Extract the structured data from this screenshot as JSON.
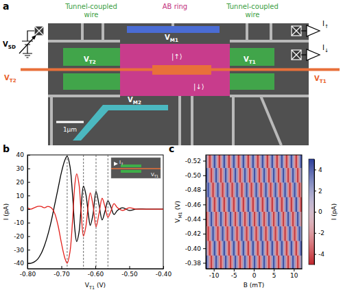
{
  "diagram": {
    "panel_label": "a",
    "titles": [
      "Tunnel-coupled wire",
      "AB ring",
      "Tunnel-coupled wire"
    ],
    "voltages": [
      {
        "main": "V",
        "sub": "SD"
      },
      {
        "main": "V",
        "sub": "T2"
      },
      {
        "main": "V",
        "sub": "T2"
      },
      {
        "main": "V",
        "sub": "M1"
      },
      {
        "main": "V",
        "sub": "M2"
      },
      {
        "main": "V",
        "sub": "T1"
      },
      {
        "main": "V",
        "sub": "T1"
      }
    ],
    "states": [
      "|↑⟩",
      "|↓⟩"
    ],
    "currents": [
      {
        "main": "I",
        "sub": "↑"
      },
      {
        "main": "I",
        "sub": "↓"
      }
    ],
    "scale_bar": "1μm"
  },
  "chart_data": [
    {
      "type": "line",
      "panel_label": "b",
      "x_label": {
        "main": "V",
        "sub": "T1",
        "rest": " (V)"
      },
      "y_label": "I (pA)",
      "x": [
        -0.8,
        -0.79,
        -0.78,
        -0.77,
        -0.76,
        -0.75,
        -0.74,
        -0.73,
        -0.72,
        -0.71,
        -0.7,
        -0.69,
        -0.683,
        -0.675,
        -0.667,
        -0.66,
        -0.655,
        -0.648,
        -0.642,
        -0.635,
        -0.628,
        -0.62,
        -0.615,
        -0.607,
        -0.598,
        -0.589,
        -0.58,
        -0.572,
        -0.563,
        -0.555,
        -0.545,
        -0.535,
        -0.52,
        -0.5,
        -0.48,
        -0.45,
        -0.4
      ],
      "series": [
        {
          "color": "#000000",
          "values": [
            -40,
            -40,
            -39,
            -37,
            -33,
            -27,
            -19,
            -9,
            3,
            15,
            27,
            36,
            39,
            32,
            10,
            -16,
            -24,
            -17,
            1,
            17,
            11,
            -5,
            -12,
            -4,
            13,
            3,
            -8,
            -2,
            6,
            2,
            -4,
            -1,
            1,
            -1,
            0,
            0,
            0
          ]
        },
        {
          "color": "#e3201b",
          "values": [
            1,
            0,
            1,
            2,
            2,
            1,
            2,
            1,
            -3,
            -12,
            -25,
            -36,
            -40,
            -32,
            -8,
            19,
            26,
            18,
            -2,
            -20,
            -13,
            5,
            12,
            3,
            -13,
            -3,
            8,
            2,
            -6,
            -2,
            4,
            1,
            -1,
            1,
            0,
            0,
            0
          ]
        }
      ],
      "xlim": [
        -0.8,
        -0.4
      ],
      "xticks": [
        {
          "value": -0.8,
          "label": "-0.80"
        },
        {
          "value": -0.7,
          "label": "-0.70"
        },
        {
          "value": -0.6,
          "label": "-0.60"
        },
        {
          "value": -0.5,
          "label": "-0.50"
        },
        {
          "value": -0.4,
          "label": "-0.40"
        }
      ],
      "ylim": [
        -44,
        40
      ],
      "yticks": [
        -40,
        -30,
        -20,
        -10,
        0,
        10,
        20,
        30,
        40
      ],
      "vlines": [
        -0.683,
        -0.635,
        -0.598,
        -0.563
      ],
      "inset": {
        "labels": [
          {
            "main": "I",
            "sub": "↑"
          },
          {
            "main": "V",
            "sub": "T1"
          }
        ]
      }
    },
    {
      "type": "heatmap",
      "panel_label": "c",
      "x_label": "B (mT)",
      "y_label": {
        "main": "V",
        "sub": "M1",
        "rest": " (V)"
      },
      "x": [
        -11.8,
        -11.4,
        -11.0,
        -10.6,
        -10.2,
        -9.8,
        -9.4,
        -9.0,
        -8.6,
        -8.2,
        -7.8,
        -7.4,
        -7.0,
        -6.6,
        -6.2,
        -5.8,
        -5.4,
        -5.0,
        -4.6,
        -4.2,
        -3.8,
        -3.4,
        -3.0,
        -2.6,
        -2.2,
        -1.8,
        -1.4,
        -1.0,
        -0.6,
        -0.2,
        0.2,
        0.6,
        1.0,
        1.4,
        1.8,
        2.2,
        2.6,
        3.0,
        3.4,
        3.8,
        4.2,
        4.6,
        5.0,
        5.4,
        5.8,
        6.2,
        6.6,
        7.0,
        7.4,
        7.8,
        8.2,
        8.6,
        9.0,
        9.4,
        9.8,
        10.2,
        10.6,
        11.0,
        11.4,
        11.8
      ],
      "y": [
        -0.52,
        -0.5,
        -0.48,
        -0.46,
        -0.44,
        -0.42,
        -0.4,
        -0.38
      ],
      "z": [
        [
          2.3,
          -2.3,
          -4.5,
          -2.3,
          2.3,
          4.5,
          2.3,
          -2.3,
          -4.5,
          -2.3,
          2.3,
          4.5,
          2.3,
          -2.3,
          -4.5,
          -2.3,
          2.3,
          4.5,
          2.3,
          -2.3,
          -4.5,
          -2.3,
          2.3,
          4.5,
          2.3,
          -2.3,
          -4.5,
          -2.3,
          2.3,
          4.5,
          2.3,
          -2.3,
          -4.5,
          -2.3,
          2.3,
          4.5,
          2.3,
          -2.3,
          -4.5,
          -2.3,
          2.3,
          4.5,
          2.3,
          -2.3,
          -4.5,
          -2.3,
          2.3,
          4.5,
          2.3,
          -2.3,
          -4.5,
          -2.3,
          2.3,
          4.5,
          2.3,
          -2.3,
          -4.5,
          -2.3,
          2.3,
          4.5
        ],
        [
          4.5,
          2.3,
          -2.3,
          -4.5,
          -2.3,
          2.3,
          4.5,
          2.3,
          -2.3,
          -4.5,
          -2.3,
          2.3,
          4.5,
          2.3,
          -2.3,
          -4.5,
          -2.3,
          2.3,
          4.5,
          2.3,
          -2.3,
          -4.5,
          -2.3,
          2.3,
          4.5,
          2.3,
          -2.3,
          -4.5,
          -2.3,
          2.3,
          4.5,
          2.3,
          -2.3,
          -4.5,
          -2.3,
          2.3,
          4.5,
          2.3,
          -2.3,
          -4.5,
          -2.3,
          2.3,
          4.5,
          2.3,
          -2.3,
          -4.5,
          -2.3,
          2.3,
          4.5,
          2.3,
          -2.3,
          -4.5,
          -2.3,
          2.3,
          4.5,
          2.3,
          -2.3,
          -4.5,
          -2.3,
          2.3
        ],
        [
          2.3,
          4.5,
          2.3,
          -2.3,
          -4.5,
          -2.3,
          2.3,
          4.5,
          2.3,
          -2.3,
          -4.5,
          -2.3,
          2.3,
          4.5,
          2.3,
          -2.3,
          -4.5,
          -2.3,
          2.3,
          4.5,
          2.3,
          -2.3,
          -4.5,
          -2.3,
          2.3,
          4.5,
          2.3,
          -2.3,
          -4.5,
          -2.3,
          2.3,
          4.5,
          2.3,
          -2.3,
          -4.5,
          -2.3,
          2.3,
          4.5,
          2.3,
          -2.3,
          -4.5,
          -2.3,
          2.3,
          4.5,
          2.3,
          -2.3,
          -4.5,
          -2.3,
          2.3,
          4.5,
          2.3,
          -2.3,
          -4.5,
          -2.3,
          2.3,
          4.5,
          2.3,
          -2.3,
          -4.5,
          -2.3
        ],
        [
          -2.3,
          2.3,
          4.5,
          2.3,
          -2.3,
          -4.5,
          -2.3,
          2.3,
          4.5,
          2.3,
          -2.3,
          -4.5,
          -2.3,
          2.3,
          4.5,
          2.3,
          -2.3,
          -4.5,
          -2.3,
          2.3,
          4.5,
          2.3,
          -2.3,
          -4.5,
          -2.3,
          2.3,
          4.5,
          2.3,
          -2.3,
          -4.5,
          -2.3,
          2.3,
          4.5,
          2.3,
          -2.3,
          -4.5,
          -2.3,
          2.3,
          4.5,
          2.3,
          -2.3,
          -4.5,
          -2.3,
          2.3,
          4.5,
          2.3,
          -2.3,
          -4.5,
          -2.3,
          2.3,
          4.5,
          2.3,
          -2.3,
          -4.5,
          -2.3,
          2.3,
          4.5,
          2.3,
          -2.3,
          -4.5
        ],
        [
          -4.5,
          -2.3,
          2.3,
          4.5,
          2.3,
          -2.3,
          -4.5,
          -2.3,
          2.3,
          4.5,
          2.3,
          -2.3,
          -4.5,
          -2.3,
          2.3,
          4.5,
          2.3,
          -2.3,
          -4.5,
          -2.3,
          2.3,
          4.5,
          2.3,
          -2.3,
          -4.5,
          -2.3,
          2.3,
          4.5,
          2.3,
          -2.3,
          -4.5,
          -2.3,
          2.3,
          4.5,
          2.3,
          -2.3,
          -4.5,
          -2.3,
          2.3,
          4.5,
          2.3,
          -2.3,
          -4.5,
          -2.3,
          2.3,
          4.5,
          2.3,
          -2.3,
          -4.5,
          -2.3,
          2.3,
          4.5,
          2.3,
          -2.3,
          -4.5,
          -2.3,
          2.3,
          4.5,
          2.3,
          -2.3
        ],
        [
          -2.3,
          -4.5,
          -2.3,
          2.3,
          4.5,
          2.3,
          -2.3,
          -4.5,
          -2.3,
          2.3,
          4.5,
          2.3,
          -2.3,
          -4.5,
          -2.3,
          2.3,
          4.5,
          2.3,
          -2.3,
          -4.5,
          -2.3,
          2.3,
          4.5,
          2.3,
          -2.3,
          -4.5,
          -2.3,
          2.3,
          4.5,
          2.3,
          -2.3,
          -4.5,
          -2.3,
          2.3,
          4.5,
          2.3,
          -2.3,
          -4.5,
          -2.3,
          2.3,
          4.5,
          2.3,
          -2.3,
          -4.5,
          -2.3,
          2.3,
          4.5,
          2.3,
          -2.3,
          -4.5,
          -2.3,
          2.3,
          4.5,
          2.3,
          -2.3,
          -4.5,
          -2.3,
          2.3,
          4.5,
          2.3
        ],
        [
          2.3,
          -2.3,
          -4.5,
          -2.3,
          2.3,
          4.5,
          2.3,
          -2.3,
          -4.5,
          -2.3,
          2.3,
          4.5,
          2.3,
          -2.3,
          -4.5,
          -2.3,
          2.3,
          4.5,
          2.3,
          -2.3,
          -4.5,
          -2.3,
          2.3,
          4.5,
          2.3,
          -2.3,
          -4.5,
          -2.3,
          2.3,
          4.5,
          2.3,
          -2.3,
          -4.5,
          -2.3,
          2.3,
          4.5,
          2.3,
          -2.3,
          -4.5,
          -2.3,
          2.3,
          4.5,
          2.3,
          -2.3,
          -4.5,
          -2.3,
          2.3,
          4.5,
          2.3,
          -2.3,
          -4.5,
          -2.3,
          2.3,
          4.5,
          2.3,
          -2.3,
          -4.5,
          -2.3,
          2.3,
          4.5
        ],
        [
          4.5,
          2.3,
          -2.3,
          -4.5,
          -2.3,
          2.3,
          4.5,
          2.3,
          -2.3,
          -4.5,
          -2.3,
          2.3,
          4.5,
          2.3,
          -2.3,
          -4.5,
          -2.3,
          2.3,
          4.5,
          2.3,
          -2.3,
          -4.5,
          -2.3,
          2.3,
          4.5,
          2.3,
          -2.3,
          -4.5,
          -2.3,
          2.3,
          4.5,
          2.3,
          -2.3,
          -4.5,
          -2.3,
          2.3,
          4.5,
          2.3,
          -2.3,
          -4.5,
          -2.3,
          2.3,
          4.5,
          2.3,
          -2.3,
          -4.5,
          -2.3,
          2.3,
          4.5,
          2.3,
          -2.3,
          -4.5,
          -2.3,
          2.3,
          4.5,
          2.3,
          -2.3,
          -4.5,
          -2.3,
          2.3
        ]
      ],
      "xlim": [
        -12,
        12
      ],
      "xticks": [
        -10,
        -5,
        0,
        5,
        10
      ],
      "ylim": [
        -0.528,
        -0.372
      ],
      "yticks": [
        -0.52,
        {
          "value": -0.5,
          "label": "-0.50"
        },
        -0.48,
        -0.46,
        -0.44,
        -0.42,
        {
          "value": -0.4,
          "label": "-0.40"
        },
        -0.38
      ],
      "colorbar": {
        "range": [
          -5,
          5
        ],
        "ticks": [
          -4,
          -2,
          0,
          2,
          4
        ],
        "label": "I (pA)"
      }
    }
  ]
}
